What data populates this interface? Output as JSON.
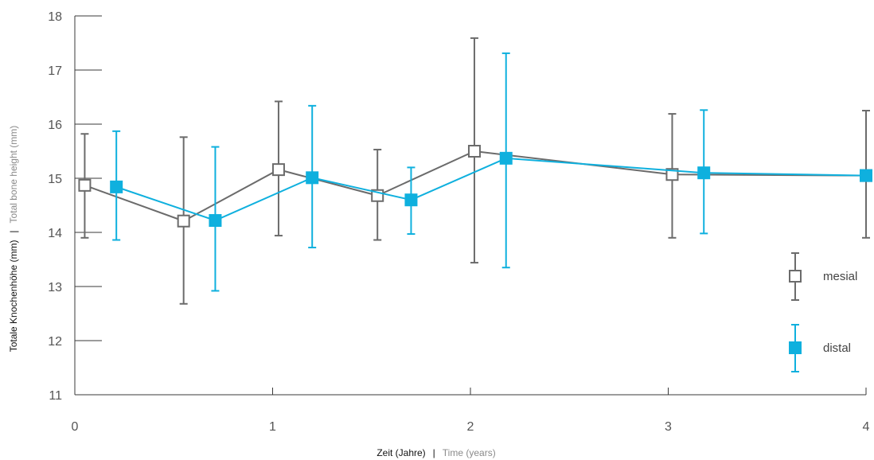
{
  "chart_data": {
    "type": "line",
    "xlabel_de": "Zeit (Jahre)",
    "xlabel_sep": "|",
    "xlabel_en": "Time (years)",
    "ylabel_de": "Totale Knochenhöhe (mm)",
    "ylabel_sep": "|",
    "ylabel_en": "Total bone height (mm)",
    "xlim": [
      0,
      4
    ],
    "ylim": [
      11,
      18
    ],
    "x_ticks": [
      0,
      1,
      2,
      3,
      4
    ],
    "y_ticks": [
      11,
      12,
      13,
      14,
      15,
      16,
      17,
      18
    ],
    "grid": false,
    "legend_position": "right",
    "series": [
      {
        "name": "mesial",
        "color": "#6b6b6b",
        "marker": "open-square",
        "points": [
          {
            "x": 0.05,
            "y": 14.87,
            "low": 13.9,
            "high": 15.82
          },
          {
            "x": 0.55,
            "y": 14.21,
            "low": 12.68,
            "high": 15.76
          },
          {
            "x": 1.03,
            "y": 15.16,
            "low": 13.94,
            "high": 16.42
          },
          {
            "x": 1.53,
            "y": 14.68,
            "low": 13.86,
            "high": 15.53
          },
          {
            "x": 2.02,
            "y": 15.5,
            "low": 13.44,
            "high": 17.59
          },
          {
            "x": 3.02,
            "y": 15.07,
            "low": 13.9,
            "high": 16.19
          },
          {
            "x": 4.0,
            "y": 15.05,
            "low": 13.9,
            "high": 16.25
          }
        ]
      },
      {
        "name": "distal",
        "color": "#0fb0de",
        "marker": "filled-square",
        "points": [
          {
            "x": 0.21,
            "y": 14.84,
            "low": 13.86,
            "high": 15.87
          },
          {
            "x": 0.71,
            "y": 14.22,
            "low": 12.92,
            "high": 15.58
          },
          {
            "x": 1.2,
            "y": 15.01,
            "low": 13.72,
            "high": 16.34
          },
          {
            "x": 1.7,
            "y": 14.6,
            "low": 13.97,
            "high": 15.2
          },
          {
            "x": 2.18,
            "y": 15.37,
            "low": 13.35,
            "high": 17.31
          },
          {
            "x": 3.18,
            "y": 15.1,
            "low": 13.98,
            "high": 16.26
          },
          {
            "x": 4.0,
            "y": 15.05,
            "low": 15.05,
            "high": 15.05
          }
        ]
      }
    ]
  }
}
